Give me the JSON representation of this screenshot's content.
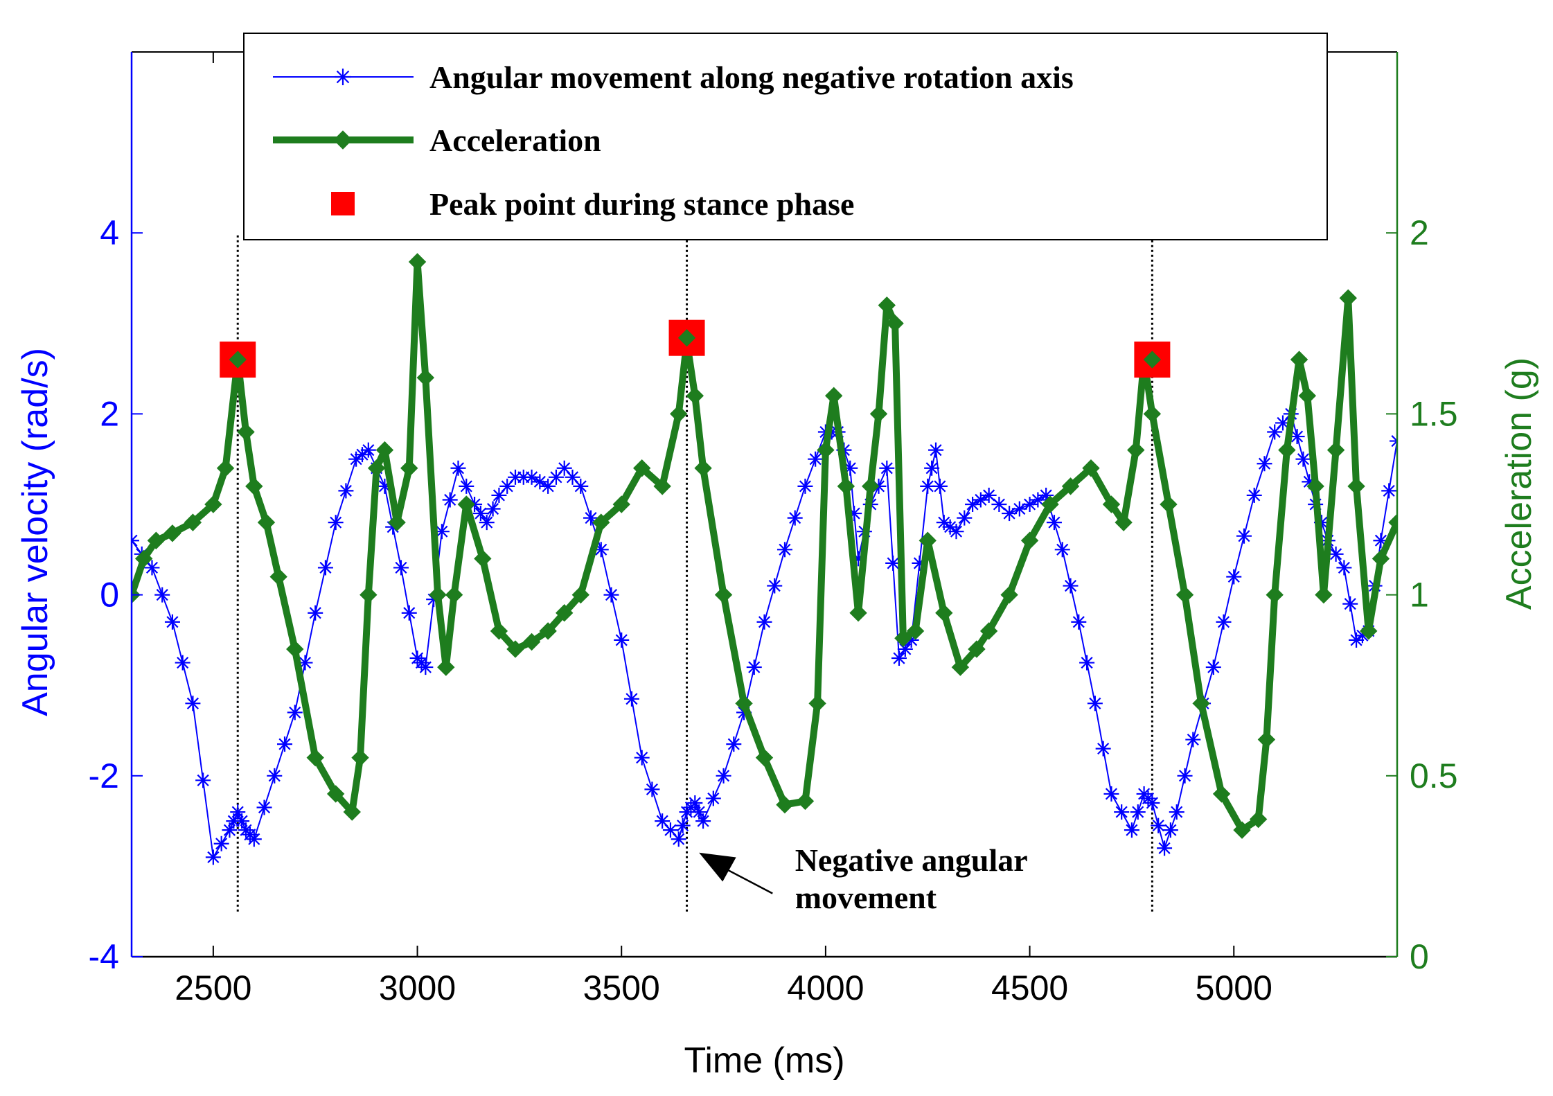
{
  "chart_data": {
    "type": "line",
    "title": "",
    "xlabel": "Time (ms)",
    "ylabel_left": "Angular velocity (rad/s)",
    "ylabel_right": "Acceleration (g)",
    "xlim": [
      2300,
      5400
    ],
    "ylim_left": [
      -4,
      6
    ],
    "ylim_right": [
      0,
      2.5
    ],
    "x_ticks": [
      2500,
      3000,
      3500,
      4000,
      4500,
      5000
    ],
    "x_tick_labels": [
      "2500",
      "3000",
      "3500",
      "4000",
      "4500",
      "5000"
    ],
    "y_left_ticks": [
      -4,
      -2,
      0,
      2,
      4
    ],
    "y_left_tick_labels": [
      "-4",
      "-2",
      "0",
      "2",
      "4"
    ],
    "y_right_ticks": [
      0,
      0.5,
      1,
      1.5,
      2
    ],
    "y_right_tick_labels": [
      "0",
      "0.5",
      "1",
      "1.5",
      "2"
    ],
    "grid": false,
    "legend_position": "top",
    "colors": {
      "angular": "#0000ff",
      "acceleration": "#1e7d1e",
      "peak": "#ff0000"
    },
    "series": [
      {
        "name": "Angular movement along negative rotation axis",
        "axis": "left",
        "style": "thin-line-star-markers",
        "x": [
          2300,
          2350,
          2400,
          2450,
          2500,
          2540,
          2560,
          2580,
          2600,
          2650,
          2700,
          2750,
          2800,
          2850,
          2880,
          2920,
          2960,
          3000,
          3020,
          3060,
          3100,
          3140,
          3170,
          3200,
          3240,
          3280,
          3320,
          3360,
          3400,
          3450,
          3500,
          3550,
          3600,
          3640,
          3660,
          3680,
          3700,
          3750,
          3800,
          3850,
          3900,
          3950,
          4000,
          4030,
          4060,
          4080,
          4110,
          4150,
          4180,
          4210,
          4250,
          4270,
          4290,
          4320,
          4360,
          4400,
          4450,
          4500,
          4540,
          4580,
          4620,
          4660,
          4700,
          4750,
          4780,
          4800,
          4830,
          4860,
          4900,
          4950,
          5000,
          5050,
          5100,
          5140,
          5170,
          5200,
          5230,
          5270,
          5300,
          5330,
          5360,
          5400
        ],
        "y": [
          0.6,
          0.3,
          -0.3,
          -1.2,
          -2.9,
          -2.6,
          -2.4,
          -2.6,
          -2.7,
          -2.0,
          -1.3,
          -0.2,
          0.8,
          1.5,
          1.6,
          1.2,
          0.3,
          -0.7,
          -0.8,
          0.7,
          1.4,
          1.0,
          0.8,
          1.1,
          1.3,
          1.3,
          1.2,
          1.4,
          1.2,
          0.5,
          -0.5,
          -1.8,
          -2.5,
          -2.7,
          -2.4,
          -2.3,
          -2.5,
          -2.0,
          -1.3,
          -0.3,
          0.5,
          1.2,
          1.8,
          1.8,
          1.4,
          0.4,
          1.0,
          1.4,
          -0.7,
          -0.5,
          1.2,
          1.6,
          0.8,
          0.7,
          1.0,
          1.1,
          0.9,
          1.0,
          1.1,
          0.5,
          -0.3,
          -1.2,
          -2.2,
          -2.6,
          -2.2,
          -2.3,
          -2.8,
          -2.4,
          -1.6,
          -0.8,
          0.2,
          1.1,
          1.8,
          2.0,
          1.5,
          1.0,
          0.6,
          0.3,
          -0.5,
          -0.4,
          0.6,
          1.7
        ]
      },
      {
        "name": "Acceleration",
        "axis": "right",
        "style": "thick-line-diamond-markers",
        "x": [
          2300,
          2330,
          2360,
          2400,
          2450,
          2500,
          2530,
          2560,
          2580,
          2600,
          2630,
          2660,
          2700,
          2750,
          2800,
          2840,
          2860,
          2880,
          2900,
          2920,
          2950,
          2980,
          3000,
          3020,
          3050,
          3070,
          3090,
          3120,
          3160,
          3200,
          3240,
          3280,
          3320,
          3360,
          3400,
          3450,
          3500,
          3550,
          3600,
          3640,
          3660,
          3680,
          3700,
          3750,
          3800,
          3850,
          3900,
          3950,
          3980,
          4000,
          4020,
          4050,
          4080,
          4110,
          4130,
          4150,
          4170,
          4190,
          4220,
          4250,
          4290,
          4330,
          4370,
          4400,
          4450,
          4500,
          4550,
          4600,
          4650,
          4700,
          4730,
          4760,
          4780,
          4800,
          4840,
          4880,
          4920,
          4970,
          5020,
          5060,
          5080,
          5100,
          5130,
          5160,
          5180,
          5200,
          5220,
          5250,
          5280,
          5300,
          5330,
          5360,
          5400
        ],
        "y": [
          1.0,
          1.1,
          1.15,
          1.17,
          1.2,
          1.25,
          1.35,
          1.65,
          1.45,
          1.3,
          1.2,
          1.05,
          0.85,
          0.55,
          0.45,
          0.4,
          0.55,
          1.0,
          1.35,
          1.4,
          1.2,
          1.35,
          1.92,
          1.6,
          1.0,
          0.8,
          1.0,
          1.25,
          1.1,
          0.9,
          0.85,
          0.87,
          0.9,
          0.95,
          1.0,
          1.2,
          1.25,
          1.35,
          1.3,
          1.5,
          1.7,
          1.55,
          1.35,
          1.0,
          0.7,
          0.55,
          0.42,
          0.43,
          0.7,
          1.4,
          1.55,
          1.3,
          0.95,
          1.3,
          1.5,
          1.8,
          1.75,
          0.88,
          0.9,
          1.15,
          0.95,
          0.8,
          0.85,
          0.9,
          1.0,
          1.15,
          1.25,
          1.3,
          1.35,
          1.25,
          1.2,
          1.4,
          1.65,
          1.5,
          1.25,
          1.0,
          0.7,
          0.45,
          0.35,
          0.38,
          0.6,
          1.0,
          1.4,
          1.65,
          1.55,
          1.3,
          1.0,
          1.4,
          1.82,
          1.3,
          0.9,
          1.1,
          1.2
        ]
      },
      {
        "name": "Peak point during stance phase",
        "axis": "right",
        "style": "square-markers",
        "x": [
          2560,
          3660,
          4800
        ],
        "y": [
          1.65,
          1.71,
          1.65
        ]
      }
    ],
    "reference_lines": {
      "style": "vertical-dotted",
      "x": [
        2560,
        3660,
        4800
      ],
      "left_axis_range": [
        -3.5,
        4
      ]
    },
    "annotations": [
      {
        "text_lines": [
          "Negative angular",
          "movement"
        ],
        "arrow_tip": {
          "x": 3690,
          "y": -2.85
        },
        "arrow_tail": {
          "x": 3870,
          "y": -3.3
        },
        "label_anchor": {
          "x": 3925,
          "y": -3.05
        }
      }
    ]
  }
}
